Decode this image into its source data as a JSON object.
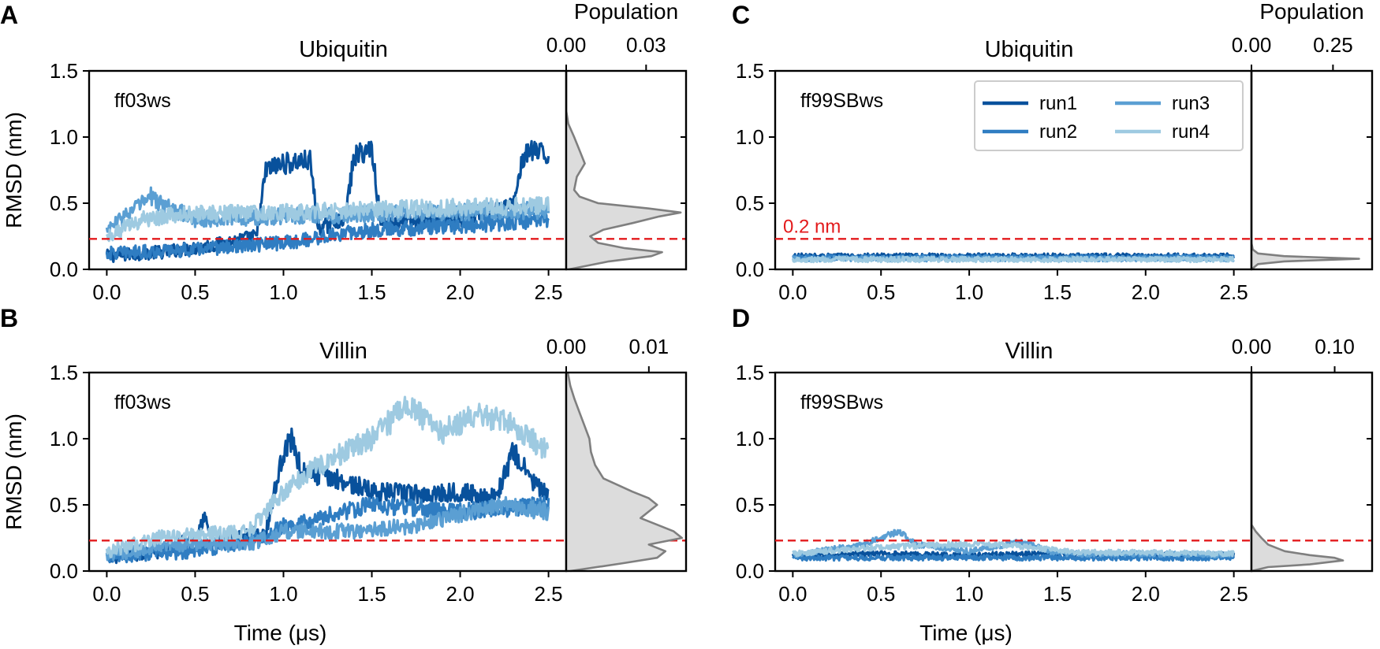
{
  "chart_data": {
    "type": "line",
    "x_label": "Time (μs)",
    "y_label": "RMSD (nm)",
    "population_label": "Population",
    "reference_line": {
      "y": 0.23,
      "label": "0.2 nm",
      "color": "#e31a1c"
    },
    "legend": [
      {
        "name": "run1",
        "color": "#08519c"
      },
      {
        "name": "run2",
        "color": "#2f7dc2"
      },
      {
        "name": "run3",
        "color": "#5b9fd3"
      },
      {
        "name": "run4",
        "color": "#9ecae1"
      }
    ],
    "panels": [
      {
        "letter": "A",
        "title": "Ubiquitin",
        "force_field": "ff03ws",
        "xlim": [
          -0.1,
          2.6
        ],
        "ylim": [
          0,
          1.5
        ],
        "xticks": [
          "0.0",
          "0.5",
          "1.0",
          "1.5",
          "2.0",
          "2.5"
        ],
        "xtick_values": [
          0,
          0.5,
          1.0,
          1.5,
          2.0,
          2.5
        ],
        "yticks": [
          "0.0",
          "0.5",
          "1.0",
          "1.5"
        ],
        "ytick_values": [
          0,
          0.5,
          1.0,
          1.5
        ],
        "pop_ticks": [
          "0.00",
          "0.03"
        ],
        "pop_tick_values": [
          0,
          0.03
        ],
        "pop_max": 0.045,
        "show_ylabel": true,
        "show_xlabel": false,
        "show_ref_label": false,
        "show_legend": false,
        "series": [
          {
            "name": "run1",
            "points": [
              [
                0,
                0.1
              ],
              [
                0.3,
                0.13
              ],
              [
                0.6,
                0.18
              ],
              [
                0.85,
                0.25
              ],
              [
                0.9,
                0.75
              ],
              [
                1.0,
                0.8
              ],
              [
                1.15,
                0.82
              ],
              [
                1.2,
                0.3
              ],
              [
                1.35,
                0.4
              ],
              [
                1.4,
                0.85
              ],
              [
                1.5,
                0.92
              ],
              [
                1.55,
                0.35
              ],
              [
                2.0,
                0.38
              ],
              [
                2.3,
                0.48
              ],
              [
                2.35,
                0.82
              ],
              [
                2.4,
                0.9
              ],
              [
                2.5,
                0.85
              ]
            ]
          },
          {
            "name": "run2",
            "points": [
              [
                0,
                0.12
              ],
              [
                0.5,
                0.15
              ],
              [
                1.0,
                0.2
              ],
              [
                1.5,
                0.3
              ],
              [
                2.0,
                0.33
              ],
              [
                2.5,
                0.38
              ]
            ]
          },
          {
            "name": "run3",
            "points": [
              [
                0,
                0.3
              ],
              [
                0.1,
                0.4
              ],
              [
                0.25,
                0.55
              ],
              [
                0.3,
                0.5
              ],
              [
                0.5,
                0.38
              ],
              [
                1.0,
                0.4
              ],
              [
                1.5,
                0.42
              ],
              [
                2.0,
                0.43
              ],
              [
                2.5,
                0.45
              ]
            ]
          },
          {
            "name": "run4",
            "points": [
              [
                0,
                0.25
              ],
              [
                0.2,
                0.38
              ],
              [
                0.5,
                0.42
              ],
              [
                1.0,
                0.43
              ],
              [
                1.5,
                0.45
              ],
              [
                2.0,
                0.47
              ],
              [
                2.5,
                0.48
              ]
            ]
          }
        ],
        "population": {
          "bins": [
            0,
            0.06,
            0.1,
            0.13,
            0.16,
            0.2,
            0.25,
            0.3,
            0.35,
            0.4,
            0.43,
            0.46,
            0.5,
            0.55,
            0.6,
            0.7,
            0.8,
            0.9,
            1.0,
            1.1,
            1.2
          ],
          "density": [
            0.001,
            0.016,
            0.032,
            0.036,
            0.022,
            0.012,
            0.009,
            0.014,
            0.025,
            0.035,
            0.043,
            0.031,
            0.012,
            0.005,
            0.003,
            0.004,
            0.007,
            0.005,
            0.003,
            0.0008,
            0.0
          ]
        }
      },
      {
        "letter": "B",
        "title": "Villin",
        "force_field": "ff03ws",
        "xlim": [
          -0.1,
          2.6
        ],
        "ylim": [
          0,
          1.5
        ],
        "xticks": [
          "0.0",
          "0.5",
          "1.0",
          "1.5",
          "2.0",
          "2.5"
        ],
        "xtick_values": [
          0,
          0.5,
          1.0,
          1.5,
          2.0,
          2.5
        ],
        "yticks": [
          "0.0",
          "0.5",
          "1.0",
          "1.5"
        ],
        "ytick_values": [
          0,
          0.5,
          1.0,
          1.5
        ],
        "pop_ticks": [
          "0.00",
          "0.01"
        ],
        "pop_tick_values": [
          0,
          0.01
        ],
        "pop_max": 0.0145,
        "show_ylabel": true,
        "show_xlabel": true,
        "show_ref_label": false,
        "show_legend": false,
        "series": [
          {
            "name": "run1",
            "points": [
              [
                0,
                0.1
              ],
              [
                0.3,
                0.15
              ],
              [
                0.5,
                0.25
              ],
              [
                0.55,
                0.42
              ],
              [
                0.6,
                0.2
              ],
              [
                0.9,
                0.3
              ],
              [
                1.0,
                0.9
              ],
              [
                1.05,
                1.0
              ],
              [
                1.1,
                0.75
              ],
              [
                1.3,
                0.7
              ],
              [
                1.5,
                0.6
              ],
              [
                1.8,
                0.58
              ],
              [
                2.0,
                0.6
              ],
              [
                2.2,
                0.55
              ],
              [
                2.3,
                0.9
              ],
              [
                2.4,
                0.7
              ],
              [
                2.5,
                0.55
              ]
            ]
          },
          {
            "name": "run2",
            "points": [
              [
                0,
                0.1
              ],
              [
                0.5,
                0.15
              ],
              [
                0.9,
                0.25
              ],
              [
                1.0,
                0.35
              ],
              [
                1.2,
                0.4
              ],
              [
                1.5,
                0.5
              ],
              [
                2.0,
                0.45
              ],
              [
                2.5,
                0.5
              ]
            ]
          },
          {
            "name": "run3",
            "points": [
              [
                0,
                0.12
              ],
              [
                0.4,
                0.2
              ],
              [
                0.8,
                0.2
              ],
              [
                1.0,
                0.3
              ],
              [
                1.4,
                0.3
              ],
              [
                1.8,
                0.35
              ],
              [
                2.2,
                0.5
              ],
              [
                2.5,
                0.45
              ]
            ]
          },
          {
            "name": "run4",
            "points": [
              [
                0,
                0.15
              ],
              [
                0.3,
                0.25
              ],
              [
                0.8,
                0.3
              ],
              [
                1.0,
                0.6
              ],
              [
                1.2,
                0.8
              ],
              [
                1.5,
                1.0
              ],
              [
                1.7,
                1.25
              ],
              [
                1.9,
                1.05
              ],
              [
                2.1,
                1.2
              ],
              [
                2.3,
                1.1
              ],
              [
                2.5,
                0.9
              ]
            ]
          }
        ],
        "population": {
          "bins": [
            0,
            0.06,
            0.1,
            0.15,
            0.2,
            0.25,
            0.3,
            0.35,
            0.4,
            0.45,
            0.5,
            0.55,
            0.6,
            0.7,
            0.8,
            0.9,
            1.0,
            1.1,
            1.2,
            1.3,
            1.4,
            1.5
          ],
          "density": [
            0.0005,
            0.007,
            0.011,
            0.012,
            0.01,
            0.014,
            0.013,
            0.011,
            0.009,
            0.01,
            0.011,
            0.01,
            0.008,
            0.0045,
            0.0035,
            0.003,
            0.0028,
            0.0022,
            0.0016,
            0.001,
            0.0005,
            0.0002
          ]
        }
      },
      {
        "letter": "C",
        "title": "Ubiquitin",
        "force_field": "ff99SBws",
        "xlim": [
          -0.1,
          2.6
        ],
        "ylim": [
          0,
          1.5
        ],
        "xticks": [
          "0.0",
          "0.5",
          "1.0",
          "1.5",
          "2.0",
          "2.5"
        ],
        "xtick_values": [
          0,
          0.5,
          1.0,
          1.5,
          2.0,
          2.5
        ],
        "yticks": [
          "0.0",
          "0.5",
          "1.0",
          "1.5"
        ],
        "ytick_values": [
          0,
          0.5,
          1.0,
          1.5
        ],
        "pop_ticks": [
          "0.00",
          "0.25"
        ],
        "pop_tick_values": [
          0,
          0.25
        ],
        "pop_max": 0.37,
        "show_ylabel": false,
        "show_xlabel": false,
        "show_ref_label": true,
        "show_legend": true,
        "series": [
          {
            "name": "run1",
            "points": [
              [
                0,
                0.1
              ],
              [
                0.5,
                0.1
              ],
              [
                1.0,
                0.1
              ],
              [
                1.5,
                0.1
              ],
              [
                2.0,
                0.1
              ],
              [
                2.5,
                0.1
              ]
            ]
          },
          {
            "name": "run2",
            "points": [
              [
                0,
                0.09
              ],
              [
                0.5,
                0.09
              ],
              [
                1.0,
                0.09
              ],
              [
                1.5,
                0.09
              ],
              [
                2.0,
                0.09
              ],
              [
                2.5,
                0.09
              ]
            ]
          },
          {
            "name": "run3",
            "points": [
              [
                0,
                0.08
              ],
              [
                0.5,
                0.08
              ],
              [
                1.0,
                0.08
              ],
              [
                1.5,
                0.08
              ],
              [
                2.0,
                0.08
              ],
              [
                2.5,
                0.08
              ]
            ]
          },
          {
            "name": "run4",
            "points": [
              [
                0,
                0.075
              ],
              [
                0.5,
                0.075
              ],
              [
                1.0,
                0.075
              ],
              [
                1.5,
                0.075
              ],
              [
                2.0,
                0.075
              ],
              [
                2.5,
                0.075
              ]
            ]
          }
        ],
        "population": {
          "bins": [
            0,
            0.04,
            0.06,
            0.08,
            0.1,
            0.12,
            0.15,
            0.2
          ],
          "density": [
            0.0,
            0.02,
            0.1,
            0.33,
            0.1,
            0.02,
            0.004,
            0.0
          ]
        }
      },
      {
        "letter": "D",
        "title": "Villin",
        "force_field": "ff99SBws",
        "xlim": [
          -0.1,
          2.6
        ],
        "ylim": [
          0,
          1.5
        ],
        "xticks": [
          "0.0",
          "0.5",
          "1.0",
          "1.5",
          "2.0",
          "2.5"
        ],
        "xtick_values": [
          0,
          0.5,
          1.0,
          1.5,
          2.0,
          2.5
        ],
        "yticks": [
          "0.0",
          "0.5",
          "1.0",
          "1.5"
        ],
        "ytick_values": [
          0,
          0.5,
          1.0,
          1.5
        ],
        "pop_ticks": [
          "0.00",
          "0.10"
        ],
        "pop_tick_values": [
          0,
          0.1
        ],
        "pop_max": 0.145,
        "show_ylabel": false,
        "show_xlabel": true,
        "show_ref_label": false,
        "show_legend": false,
        "series": [
          {
            "name": "run1",
            "points": [
              [
                0,
                0.12
              ],
              [
                0.5,
                0.13
              ],
              [
                1.0,
                0.12
              ],
              [
                1.5,
                0.13
              ],
              [
                2.0,
                0.12
              ],
              [
                2.5,
                0.12
              ]
            ]
          },
          {
            "name": "run2",
            "points": [
              [
                0,
                0.1
              ],
              [
                0.5,
                0.1
              ],
              [
                1.0,
                0.1
              ],
              [
                1.5,
                0.1
              ],
              [
                2.0,
                0.1
              ],
              [
                2.5,
                0.1
              ]
            ]
          },
          {
            "name": "run3",
            "points": [
              [
                0,
                0.12
              ],
              [
                0.4,
                0.2
              ],
              [
                0.6,
                0.3
              ],
              [
                0.7,
                0.2
              ],
              [
                1.0,
                0.15
              ],
              [
                1.3,
                0.22
              ],
              [
                1.5,
                0.13
              ],
              [
                2.0,
                0.13
              ],
              [
                2.5,
                0.12
              ]
            ]
          },
          {
            "name": "run4",
            "points": [
              [
                0,
                0.13
              ],
              [
                0.5,
                0.18
              ],
              [
                0.9,
                0.2
              ],
              [
                1.2,
                0.2
              ],
              [
                1.6,
                0.14
              ],
              [
                2.0,
                0.14
              ],
              [
                2.5,
                0.13
              ]
            ]
          }
        ],
        "population": {
          "bins": [
            0,
            0.03,
            0.05,
            0.08,
            0.1,
            0.12,
            0.15,
            0.2,
            0.25,
            0.3,
            0.35
          ],
          "density": [
            0.0,
            0.02,
            0.07,
            0.11,
            0.1,
            0.07,
            0.04,
            0.02,
            0.012,
            0.005,
            0.0
          ]
        }
      }
    ]
  }
}
